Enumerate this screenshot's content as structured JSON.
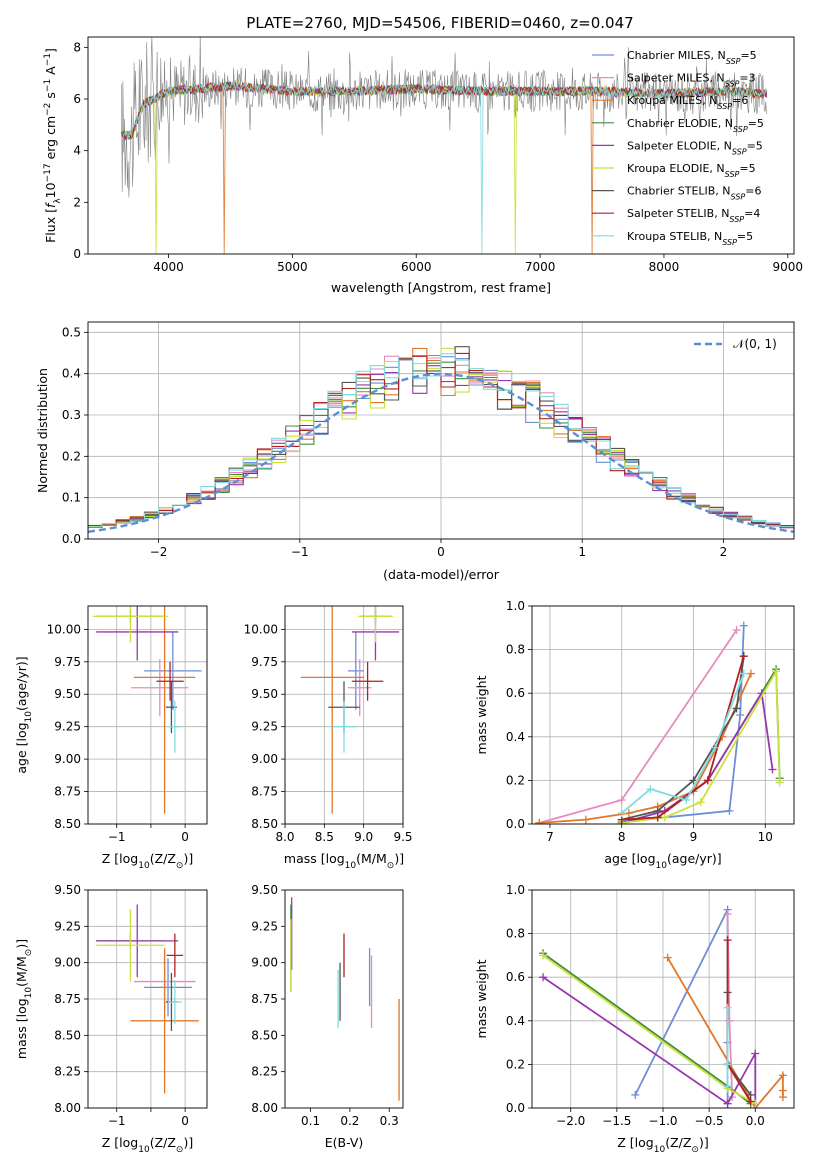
{
  "figure_title": "PLATE=2760, MJD=54506, FIBERID=0460, z=0.047",
  "colors": {
    "chabrier_miles": "#6c8fd8",
    "salpeter_miles": "#e68bbf",
    "kroupa_miles": "#e0772a",
    "chabrier_elodie": "#3f8c3f",
    "salpeter_elodie": "#9a36b0",
    "kroupa_elodie": "#c8e23a",
    "chabrier_stelib": "#555555",
    "salpeter_stelib": "#b22020",
    "kroupa_stelib": "#7fdbe0",
    "observed_spectrum": "#808080",
    "normal_curve": "#5b8fd6"
  },
  "chart_data": [
    {
      "id": "spectrum",
      "type": "line",
      "title": "PLATE=2760, MJD=54506, FIBERID=0460, z=0.047",
      "xlabel": "wavelength [Angstrom, rest frame]",
      "ylabel_parts": [
        "Flux [",
        "f",
        "λ",
        "10",
        "−17",
        " erg cm",
        "−2",
        " s",
        "−1",
        " A",
        "−1",
        "]"
      ],
      "xlim": [
        3350,
        9050
      ],
      "ylim": [
        0,
        8.4
      ],
      "xticks": [
        4000,
        5000,
        6000,
        7000,
        8000,
        9000
      ],
      "yticks": [
        0,
        2,
        4,
        6,
        8
      ],
      "grid": false,
      "legend_position": "top-right",
      "legend": [
        {
          "key": "chabrier_miles",
          "name": "Chabrier MILES, N",
          "sub": "SSP",
          "suffix": "=5"
        },
        {
          "key": "salpeter_miles",
          "name": "Salpeter MILES, N",
          "sub": "SSP",
          "suffix": "=3"
        },
        {
          "key": "kroupa_miles",
          "name": "Kroupa MILES, N",
          "sub": "SSP",
          "suffix": "=6"
        },
        {
          "key": "chabrier_elodie",
          "name": "Chabrier ELODIE, N",
          "sub": "SSP",
          "suffix": "=5"
        },
        {
          "key": "salpeter_elodie",
          "name": "Salpeter ELODIE, N",
          "sub": "SSP",
          "suffix": "=5"
        },
        {
          "key": "kroupa_elodie",
          "name": "Kroupa ELODIE, N",
          "sub": "SSP",
          "suffix": "=5"
        },
        {
          "key": "chabrier_stelib",
          "name": "Chabrier STELIB, N",
          "sub": "SSP",
          "suffix": "=6"
        },
        {
          "key": "salpeter_stelib",
          "name": "Salpeter STELIB, N",
          "sub": "SSP",
          "suffix": "=4"
        },
        {
          "key": "kroupa_stelib",
          "name": "Kroupa STELIB, N",
          "sub": "SSP",
          "suffix": "=5"
        }
      ],
      "observed": {
        "x_range": [
          3620,
          8830
        ],
        "level": 6.4,
        "noise": 0.8
      },
      "model_shape": [
        [
          3620,
          4.6
        ],
        [
          3700,
          4.6
        ],
        [
          3800,
          5.8
        ],
        [
          4000,
          6.3
        ],
        [
          4500,
          6.5
        ],
        [
          5000,
          6.3
        ],
        [
          5500,
          6.3
        ],
        [
          6000,
          6.4
        ],
        [
          6500,
          6.3
        ],
        [
          7000,
          6.3
        ],
        [
          7500,
          6.3
        ],
        [
          8000,
          6.2
        ],
        [
          8500,
          6.3
        ],
        [
          8800,
          6.2
        ]
      ],
      "model_dropouts": [
        {
          "key": "kroupa_miles",
          "at": [
            4450,
            7420
          ]
        },
        {
          "key": "kroupa_elodie",
          "at": [
            3900,
            6800
          ]
        },
        {
          "key": "kroupa_stelib",
          "at": [
            6530
          ]
        }
      ]
    },
    {
      "id": "residuals",
      "type": "histogram",
      "xlabel": "(data-model)/error",
      "ylabel": "Normed distribution",
      "xlim": [
        -2.5,
        2.5
      ],
      "ylim": [
        0,
        0.525
      ],
      "xticks": [
        -2,
        -1,
        0,
        1,
        2
      ],
      "yticks": [
        0,
        0.1,
        0.2,
        0.3,
        0.4,
        0.5
      ],
      "grid": true,
      "legend_position": "top-right",
      "legend": [
        {
          "key": "normal_curve",
          "label": "𝒩(0, 1)"
        }
      ],
      "bin_width": 0.1
    },
    {
      "id": "z-age",
      "type": "errorbar",
      "xlabel_parts": [
        "Z [log",
        "10",
        "(Z/Z",
        "⊙",
        ")]"
      ],
      "ylabel_parts": [
        "age  [log",
        "10",
        "(age/yr)]"
      ],
      "xlim": [
        -1.42,
        0.32
      ],
      "ylim": [
        8.5,
        10.18
      ],
      "xticks": [
        -1,
        -0.5,
        0
      ],
      "xtick_labels": [
        "−1",
        "",
        "0"
      ],
      "yticks": [
        8.5,
        8.75,
        9.0,
        9.25,
        9.5,
        9.75,
        10.0
      ],
      "grid": true,
      "points": [
        {
          "key": "chabrier_miles",
          "x": -0.18,
          "xerr": 0.42,
          "y": 9.68,
          "yerr": 0.3
        },
        {
          "key": "salpeter_miles",
          "x": -0.37,
          "xerr": 0.42,
          "y": 9.55,
          "yerr": 0.22
        },
        {
          "key": "kroupa_miles",
          "x": -0.3,
          "xerr": 0.45,
          "y": 9.63,
          "yerr": 1.05
        },
        {
          "key": "chabrier_elodie",
          "x": -0.8,
          "xerr": 0.5,
          "y": 10.1,
          "yerr": 0.05
        },
        {
          "key": "salpeter_elodie",
          "x": -0.7,
          "xerr": 0.6,
          "y": 9.98,
          "yerr": 0.22
        },
        {
          "key": "kroupa_elodie",
          "x": -0.8,
          "xerr": 0.55,
          "y": 10.1,
          "yerr": 0.2
        },
        {
          "key": "chabrier_stelib",
          "x": -0.2,
          "xerr": 0.08,
          "y": 9.4,
          "yerr": 0.2
        },
        {
          "key": "salpeter_stelib",
          "x": -0.22,
          "xerr": 0.2,
          "y": 9.6,
          "yerr": 0.15
        },
        {
          "key": "kroupa_stelib",
          "x": -0.15,
          "xerr": 0.1,
          "y": 9.25,
          "yerr": 0.2
        }
      ]
    },
    {
      "id": "mass-age",
      "type": "errorbar",
      "xlabel_parts": [
        "mass [log",
        "10",
        "(M/M",
        "⊙",
        ")]"
      ],
      "ylabel_parts": [],
      "xlim": [
        8.0,
        9.5
      ],
      "ylim": [
        8.5,
        10.18
      ],
      "xticks": [
        8.0,
        8.5,
        9.0,
        9.5
      ],
      "xtick_labels": [
        "8.0",
        "8.5",
        "9.0",
        "9.5"
      ],
      "yticks": [
        8.5,
        8.75,
        9.0,
        9.25,
        9.5,
        9.75,
        10.0
      ],
      "grid": true,
      "points": [
        {
          "key": "chabrier_miles",
          "x": 8.9,
          "xerr": 0.1,
          "y": 9.68,
          "yerr": 0.3
        },
        {
          "key": "salpeter_miles",
          "x": 8.95,
          "xerr": 0.15,
          "y": 9.55,
          "yerr": 0.22
        },
        {
          "key": "kroupa_miles",
          "x": 8.6,
          "xerr": 0.4,
          "y": 9.63,
          "yerr": 1.05
        },
        {
          "key": "chabrier_elodie",
          "x": 9.15,
          "xerr": 0.2,
          "y": 10.1,
          "yerr": 0.05
        },
        {
          "key": "salpeter_elodie",
          "x": 9.15,
          "xerr": 0.3,
          "y": 9.98,
          "yerr": 0.22
        },
        {
          "key": "kroupa_elodie",
          "x": 9.15,
          "xerr": 0.22,
          "y": 10.1,
          "yerr": 0.2
        },
        {
          "key": "chabrier_stelib",
          "x": 8.75,
          "xerr": 0.2,
          "y": 9.4,
          "yerr": 0.2
        },
        {
          "key": "salpeter_stelib",
          "x": 9.05,
          "xerr": 0.2,
          "y": 9.6,
          "yerr": 0.15
        },
        {
          "key": "kroupa_stelib",
          "x": 8.75,
          "xerr": 0.15,
          "y": 9.25,
          "yerr": 0.2
        }
      ]
    },
    {
      "id": "age-weight",
      "type": "line",
      "xlabel_parts": [
        "age  [log",
        "10",
        "(age/yr)]"
      ],
      "ylabel": "mass weight",
      "xlim": [
        6.75,
        10.4
      ],
      "ylim": [
        0,
        1
      ],
      "xticks": [
        7,
        8,
        9,
        10
      ],
      "yticks": [
        0,
        0.2,
        0.4,
        0.6,
        0.8,
        1.0
      ],
      "grid": true,
      "series": [
        {
          "key": "chabrier_miles",
          "x": [
            8.0,
            9.5,
            9.65,
            9.7
          ],
          "y": [
            0.01,
            0.06,
            0.5,
            0.91
          ]
        },
        {
          "key": "salpeter_miles",
          "x": [
            6.85,
            8.0,
            9.6
          ],
          "y": [
            0.005,
            0.11,
            0.89
          ]
        },
        {
          "key": "kroupa_miles",
          "x": [
            6.85,
            7.5,
            8.1,
            8.5,
            9.0,
            9.4,
            9.8
          ],
          "y": [
            0.005,
            0.02,
            0.05,
            0.08,
            0.15,
            0.4,
            0.69
          ]
        },
        {
          "key": "chabrier_elodie",
          "x": [
            8.0,
            8.5,
            9.2,
            10.15,
            10.2
          ],
          "y": [
            0.005,
            0.03,
            0.2,
            0.71,
            0.21
          ]
        },
        {
          "key": "salpeter_elodie",
          "x": [
            8.0,
            8.6,
            9.2,
            9.95,
            10.1
          ],
          "y": [
            0.005,
            0.06,
            0.2,
            0.6,
            0.25
          ]
        },
        {
          "key": "kroupa_elodie",
          "x": [
            8.0,
            8.6,
            9.1,
            10.15,
            10.2
          ],
          "y": [
            0.005,
            0.03,
            0.1,
            0.7,
            0.19
          ]
        },
        {
          "key": "chabrier_stelib",
          "x": [
            8.0,
            8.5,
            9.0,
            9.6,
            9.7
          ],
          "y": [
            0.02,
            0.06,
            0.2,
            0.53,
            0.77
          ]
        },
        {
          "key": "salpeter_stelib",
          "x": [
            8.0,
            8.5,
            9.2,
            9.7
          ],
          "y": [
            0.02,
            0.03,
            0.2,
            0.77
          ]
        },
        {
          "key": "kroupa_stelib",
          "x": [
            8.0,
            8.4,
            8.9,
            9.3,
            9.7
          ],
          "y": [
            0.05,
            0.16,
            0.11,
            0.35,
            0.69
          ]
        }
      ]
    },
    {
      "id": "z-mass",
      "type": "errorbar",
      "xlabel_parts": [
        "Z [log",
        "10",
        "(Z/Z",
        "⊙",
        ")]"
      ],
      "ylabel_parts": [
        "mass [log",
        "10",
        "(M/M",
        "⊙",
        ")]"
      ],
      "xlim": [
        -1.42,
        0.32
      ],
      "ylim": [
        8.0,
        9.5
      ],
      "xticks": [
        -1,
        -0.5,
        0
      ],
      "xtick_labels": [
        "−1",
        "",
        "0"
      ],
      "yticks": [
        8.0,
        8.25,
        8.5,
        8.75,
        9.0,
        9.25,
        9.5
      ],
      "grid": true,
      "points": [
        {
          "key": "chabrier_miles",
          "x": -0.25,
          "xerr": 0.35,
          "y": 8.83,
          "yerr": 0.2
        },
        {
          "key": "salpeter_miles",
          "x": -0.3,
          "xerr": 0.45,
          "y": 8.87,
          "yerr": 0.2
        },
        {
          "key": "kroupa_miles",
          "x": -0.3,
          "xerr": 0.5,
          "y": 8.6,
          "yerr": 0.5
        },
        {
          "key": "chabrier_elodie",
          "x": -0.8,
          "xerr": 0.5,
          "y": 9.15,
          "yerr": 0.05
        },
        {
          "key": "salpeter_elodie",
          "x": -0.7,
          "xerr": 0.6,
          "y": 9.15,
          "yerr": 0.25
        },
        {
          "key": "kroupa_elodie",
          "x": -0.8,
          "xerr": 0.5,
          "y": 9.12,
          "yerr": 0.25
        },
        {
          "key": "chabrier_stelib",
          "x": -0.2,
          "xerr": 0.08,
          "y": 8.73,
          "yerr": 0.2
        },
        {
          "key": "salpeter_stelib",
          "x": -0.15,
          "xerr": 0.12,
          "y": 9.05,
          "yerr": 0.15
        },
        {
          "key": "kroupa_stelib",
          "x": -0.15,
          "xerr": 0.1,
          "y": 8.73,
          "yerr": 0.15
        }
      ]
    },
    {
      "id": "ebv-mass",
      "type": "errorbar",
      "xlabel": "E(B-V)",
      "ylabel_parts": [],
      "xlim": [
        0.035,
        0.335
      ],
      "ylim": [
        8.0,
        9.5
      ],
      "xticks": [
        0.1,
        0.2,
        0.3
      ],
      "xtick_labels": [
        "0.1",
        "0.2",
        "0.3"
      ],
      "yticks": [
        8.0,
        8.25,
        8.5,
        8.75,
        9.0,
        9.25,
        9.5
      ],
      "grid": false,
      "points": [
        {
          "key": "chabrier_miles",
          "x": 0.25,
          "xerr": 0,
          "y": 8.9,
          "yerr": 0.2
        },
        {
          "key": "salpeter_miles",
          "x": 0.255,
          "xerr": 0,
          "y": 8.8,
          "yerr": 0.25
        },
        {
          "key": "kroupa_miles",
          "x": 0.325,
          "xerr": 0,
          "y": 8.4,
          "yerr": 0.35
        },
        {
          "key": "chabrier_elodie",
          "x": 0.05,
          "xerr": 0,
          "y": 9.1,
          "yerr": 0.3
        },
        {
          "key": "salpeter_elodie",
          "x": 0.052,
          "xerr": 0,
          "y": 9.2,
          "yerr": 0.25
        },
        {
          "key": "kroupa_elodie",
          "x": 0.05,
          "xerr": 0,
          "y": 9.05,
          "yerr": 0.25
        },
        {
          "key": "chabrier_stelib",
          "x": 0.175,
          "xerr": 0,
          "y": 8.8,
          "yerr": 0.2
        },
        {
          "key": "salpeter_stelib",
          "x": 0.185,
          "xerr": 0,
          "y": 9.05,
          "yerr": 0.15
        },
        {
          "key": "kroupa_stelib",
          "x": 0.17,
          "xerr": 0,
          "y": 8.75,
          "yerr": 0.2
        }
      ]
    },
    {
      "id": "z-weight",
      "type": "line",
      "xlabel_parts": [
        "Z [log",
        "10",
        "(Z/Z",
        "⊙",
        ")]"
      ],
      "ylabel": "mass weight",
      "xlim": [
        -2.42,
        0.42
      ],
      "ylim": [
        0,
        1
      ],
      "xticks": [
        -2.0,
        -1.5,
        -1.0,
        -0.5,
        0.0
      ],
      "xtick_labels": [
        "−2.0",
        "−1.5",
        "−1.0",
        "−0.5",
        "0.0"
      ],
      "yticks": [
        0,
        0.2,
        0.4,
        0.6,
        0.8,
        1.0
      ],
      "grid": true,
      "series": [
        {
          "key": "chabrier_miles",
          "x": [
            -1.3,
            -0.3,
            -0.3,
            -0.3
          ],
          "y": [
            0.06,
            0.91,
            0.3,
            0.02
          ]
        },
        {
          "key": "salpeter_miles",
          "x": [
            -0.3,
            -0.28,
            -0.25
          ],
          "y": [
            0.89,
            0.4,
            0.05
          ]
        },
        {
          "key": "kroupa_miles",
          "x": [
            -0.95,
            0.0,
            0.3,
            0.3,
            0.3
          ],
          "y": [
            0.69,
            0.0,
            0.15,
            0.08,
            0.05
          ]
        },
        {
          "key": "chabrier_elodie",
          "x": [
            -2.3,
            -0.3,
            -0.05
          ],
          "y": [
            0.71,
            0.1,
            0.02
          ]
        },
        {
          "key": "salpeter_elodie",
          "x": [
            -2.3,
            -0.3,
            0.0,
            0.0
          ],
          "y": [
            0.6,
            0.02,
            0.25,
            0.02
          ]
        },
        {
          "key": "kroupa_elodie",
          "x": [
            -2.3,
            -0.3,
            0.0
          ],
          "y": [
            0.7,
            0.09,
            0.02
          ]
        },
        {
          "key": "chabrier_stelib",
          "x": [
            -0.3,
            -0.3,
            -0.05
          ],
          "y": [
            0.53,
            0.2,
            0.06
          ]
        },
        {
          "key": "salpeter_stelib",
          "x": [
            -0.3,
            -0.3,
            -0.05
          ],
          "y": [
            0.77,
            0.2,
            0.03
          ]
        },
        {
          "key": "kroupa_stelib",
          "x": [
            -0.3,
            -0.3,
            -0.3
          ],
          "y": [
            0.46,
            0.2,
            0.1
          ]
        }
      ]
    }
  ]
}
